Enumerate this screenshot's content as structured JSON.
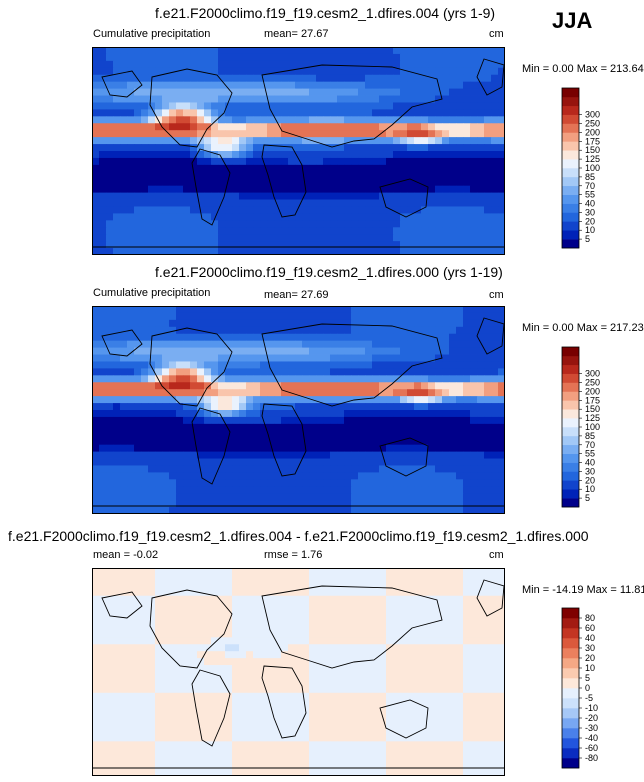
{
  "season": "JJA",
  "palettes": {
    "precip": [
      "#00008a",
      "#0022b8",
      "#1144cc",
      "#2266dd",
      "#3a7fe6",
      "#5596ee",
      "#7aaef2",
      "#a2c8f6",
      "#c8dffa",
      "#eaf2fd",
      "#fbe8dc",
      "#f9c5ac",
      "#f29f80",
      "#e47355",
      "#d14a33",
      "#b8281c",
      "#97140e",
      "#780000"
    ],
    "diff": [
      "#00008a",
      "#0a2cc0",
      "#2255dd",
      "#4a80ea",
      "#78a7f2",
      "#a6c8f7",
      "#cce1fb",
      "#e6f0fd",
      "#fde8da",
      "#fbcbb0",
      "#f5a885",
      "#eb805e",
      "#db593c",
      "#c33522",
      "#a31b12",
      "#7f0000"
    ]
  },
  "chart_data": [
    {
      "type": "heatmap",
      "title": "f.e21.F2000climo.f19_f19.cesm2_1.dfires.004 (yrs 1-9)",
      "subtitle": "Cumulative precipitation",
      "mean_label": "mean=",
      "mean": "27.67",
      "units": "cm",
      "minmax": "Min =   0.00 Max = 213.64",
      "min": 0.0,
      "max": 213.64,
      "colorbar_levels": [
        5,
        10,
        20,
        30,
        40,
        55,
        70,
        85,
        100,
        125,
        150,
        175,
        200,
        250,
        300
      ],
      "regime": "precip"
    },
    {
      "type": "heatmap",
      "title": "f.e21.F2000climo.f19_f19.cesm2_1.dfires.000 (yrs 1-19)",
      "subtitle": "Cumulative precipitation",
      "mean_label": "mean=",
      "mean": "27.69",
      "units": "cm",
      "minmax": "Min =   0.00 Max = 217.23",
      "min": 0.0,
      "max": 217.23,
      "colorbar_levels": [
        5,
        10,
        20,
        30,
        40,
        55,
        70,
        85,
        100,
        125,
        150,
        175,
        200,
        250,
        300
      ],
      "regime": "precip"
    },
    {
      "type": "heatmap",
      "title": "f.e21.F2000climo.f19_f19.cesm2_1.dfires.004 - f.e21.F2000climo.f19_f19.cesm2_1.dfires.000",
      "mean_label": "mean =",
      "mean": "-0.02",
      "rmse_label": "rmse =",
      "rmse": "1.76",
      "units": "cm",
      "minmax": "Min = -14.19 Max = 11.81",
      "min": -14.19,
      "max": 11.81,
      "colorbar_levels": [
        -80,
        -60,
        -40,
        -30,
        -20,
        -10,
        -5,
        0,
        5,
        10,
        20,
        30,
        40,
        60,
        80
      ],
      "regime": "diff"
    }
  ]
}
